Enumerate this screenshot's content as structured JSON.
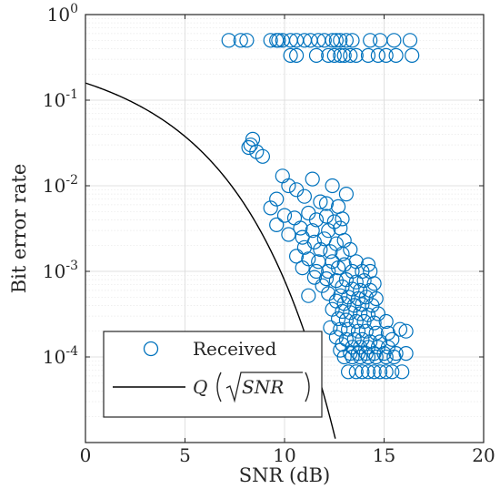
{
  "chart_data": {
    "type": "scatter",
    "xlabel": "SNR (dB)",
    "ylabel": "Bit error rate",
    "xlim": [
      0,
      20
    ],
    "ylim": [
      1e-05,
      1
    ],
    "yscale": "log",
    "grid": true,
    "minor_grid": true,
    "legend_position": "bottom-left",
    "x_ticks": [
      "0",
      "5",
      "10",
      "15",
      "20"
    ],
    "y_ticks": [
      {
        "base": "10",
        "exp": "-4",
        "value": 0.0001
      },
      {
        "base": "10",
        "exp": "-3",
        "value": 0.001
      },
      {
        "base": "10",
        "exp": "-2",
        "value": 0.01
      },
      {
        "base": "10",
        "exp": "-1",
        "value": 0.1
      },
      {
        "base": "10",
        "exp": "0",
        "value": 1
      }
    ],
    "colors": {
      "received": "#0072BD",
      "q_curve": "#000000",
      "grid": "#d9d9d9",
      "axis": "#262626"
    },
    "legend": {
      "received": "Received",
      "q_prefix": "Q",
      "q_arg": "SNR"
    },
    "series": [
      {
        "name": "Received",
        "marker": "circle-open",
        "points": [
          [
            7.2,
            0.5
          ],
          [
            7.8,
            0.5
          ],
          [
            9.3,
            0.5
          ],
          [
            9.6,
            0.5
          ],
          [
            9.9,
            0.5
          ],
          [
            10.3,
            0.5
          ],
          [
            10.6,
            0.5
          ],
          [
            11.0,
            0.5
          ],
          [
            11.3,
            0.5
          ],
          [
            11.7,
            0.5
          ],
          [
            12.0,
            0.5
          ],
          [
            12.4,
            0.5
          ],
          [
            12.8,
            0.5
          ],
          [
            13.1,
            0.5
          ],
          [
            13.4,
            0.5
          ],
          [
            14.3,
            0.5
          ],
          [
            14.8,
            0.5
          ],
          [
            15.5,
            0.5
          ],
          [
            16.3,
            0.5
          ],
          [
            8.1,
            0.5
          ],
          [
            9.7,
            0.5
          ],
          [
            12.6,
            0.5
          ],
          [
            10.3,
            0.333
          ],
          [
            10.6,
            0.333
          ],
          [
            11.6,
            0.333
          ],
          [
            12.2,
            0.333
          ],
          [
            12.8,
            0.333
          ],
          [
            13.3,
            0.333
          ],
          [
            13.6,
            0.333
          ],
          [
            14.2,
            0.333
          ],
          [
            14.7,
            0.333
          ],
          [
            15.1,
            0.333
          ],
          [
            15.6,
            0.333
          ],
          [
            16.4,
            0.333
          ],
          [
            12.5,
            0.333
          ],
          [
            13.0,
            0.333
          ],
          [
            8.2,
            0.028
          ],
          [
            8.4,
            0.035
          ],
          [
            8.6,
            0.025
          ],
          [
            8.9,
            0.022
          ],
          [
            8.3,
            0.03
          ],
          [
            9.9,
            0.013
          ],
          [
            11.4,
            0.012
          ],
          [
            10.2,
            0.01
          ],
          [
            12.4,
            0.01
          ],
          [
            13.1,
            0.008
          ],
          [
            9.6,
            0.007
          ],
          [
            10.6,
            0.009
          ],
          [
            11.0,
            0.0075
          ],
          [
            11.8,
            0.0065
          ],
          [
            9.3,
            0.0055
          ],
          [
            12.1,
            0.0062
          ],
          [
            12.7,
            0.0057
          ],
          [
            10.0,
            0.0045
          ],
          [
            10.5,
            0.0042
          ],
          [
            11.2,
            0.0048
          ],
          [
            11.6,
            0.004
          ],
          [
            12.1,
            0.0044
          ],
          [
            12.5,
            0.0038
          ],
          [
            12.9,
            0.0041
          ],
          [
            9.6,
            0.0035
          ],
          [
            10.8,
            0.0032
          ],
          [
            11.4,
            0.003
          ],
          [
            12.2,
            0.003
          ],
          [
            12.8,
            0.0032
          ],
          [
            10.2,
            0.0027
          ],
          [
            10.9,
            0.0025
          ],
          [
            11.5,
            0.0022
          ],
          [
            12.0,
            0.0024
          ],
          [
            12.6,
            0.0021
          ],
          [
            13.0,
            0.0023
          ],
          [
            11.0,
            0.0019
          ],
          [
            11.8,
            0.0018
          ],
          [
            12.3,
            0.0017
          ],
          [
            12.9,
            0.0016
          ],
          [
            13.3,
            0.0018
          ],
          [
            10.6,
            0.0015
          ],
          [
            11.2,
            0.0014
          ],
          [
            11.7,
            0.0013
          ],
          [
            12.4,
            0.0013
          ],
          [
            13.0,
            0.0012
          ],
          [
            13.6,
            0.0013
          ],
          [
            14.2,
            0.0012
          ],
          [
            10.9,
            0.0011
          ],
          [
            11.6,
            0.001
          ],
          [
            12.2,
            0.001
          ],
          [
            12.7,
            0.0011
          ],
          [
            13.4,
            0.001
          ],
          [
            13.9,
            0.001
          ],
          [
            14.3,
            0.001
          ],
          [
            11.5,
            0.00085
          ],
          [
            12.1,
            0.00082
          ],
          [
            12.6,
            0.00078
          ],
          [
            13.1,
            0.0008
          ],
          [
            13.6,
            0.00075
          ],
          [
            14.0,
            0.00078
          ],
          [
            14.5,
            0.00072
          ],
          [
            11.9,
            0.00068
          ],
          [
            12.9,
            0.00066
          ],
          [
            13.4,
            0.00062
          ],
          [
            13.8,
            0.0006
          ],
          [
            14.3,
            0.0006
          ],
          [
            12.2,
            0.00055
          ],
          [
            12.8,
            0.00052
          ],
          [
            13.2,
            0.0005
          ],
          [
            13.7,
            0.00048
          ],
          [
            14.1,
            0.0005
          ],
          [
            14.6,
            0.00048
          ],
          [
            11.2,
            0.00052
          ],
          [
            12.6,
            0.00045
          ],
          [
            13.0,
            0.00042
          ],
          [
            13.5,
            0.0004
          ],
          [
            13.9,
            0.00041
          ],
          [
            14.4,
            0.0004
          ],
          [
            12.4,
            0.00036
          ],
          [
            12.9,
            0.00034
          ],
          [
            13.3,
            0.00033
          ],
          [
            13.8,
            0.00032
          ],
          [
            14.2,
            0.00031
          ],
          [
            14.7,
            0.00032
          ],
          [
            12.7,
            0.00028
          ],
          [
            13.1,
            0.00027
          ],
          [
            13.6,
            0.00026
          ],
          [
            14.0,
            0.00026
          ],
          [
            14.5,
            0.00025
          ],
          [
            15.1,
            0.00026
          ],
          [
            12.3,
            0.00022
          ],
          [
            12.8,
            0.00021
          ],
          [
            13.2,
            0.00021
          ],
          [
            13.7,
            0.0002
          ],
          [
            14.1,
            0.0002
          ],
          [
            14.6,
            0.00019
          ],
          [
            15.2,
            0.00019
          ],
          [
            15.8,
            0.00021
          ],
          [
            16.1,
            0.0002
          ],
          [
            12.6,
            0.00017
          ],
          [
            13.1,
            0.00016
          ],
          [
            13.5,
            0.00016
          ],
          [
            13.9,
            0.00016
          ],
          [
            14.3,
            0.00015
          ],
          [
            14.8,
            0.00015
          ],
          [
            15.4,
            0.00016
          ],
          [
            12.9,
            0.00014
          ],
          [
            13.4,
            0.00013
          ],
          [
            13.8,
            0.00013
          ],
          [
            14.2,
            0.00013
          ],
          [
            14.7,
            0.00013
          ],
          [
            15.2,
            0.00013
          ],
          [
            12.8,
            0.00012
          ],
          [
            13.3,
            0.00011
          ],
          [
            13.7,
            0.00011
          ],
          [
            14.1,
            0.00011
          ],
          [
            14.5,
            0.00011
          ],
          [
            15.0,
            0.00011
          ],
          [
            15.6,
            0.00011
          ],
          [
            16.1,
            0.00011
          ],
          [
            13.0,
            0.0001
          ],
          [
            13.4,
            0.0001
          ],
          [
            13.8,
            0.0001
          ],
          [
            14.2,
            0.0001
          ],
          [
            14.6,
            0.0001
          ],
          [
            15.1,
            0.0001
          ],
          [
            15.5,
            0.0001
          ],
          [
            13.2,
            6.7e-05
          ],
          [
            13.6,
            6.7e-05
          ],
          [
            13.9,
            6.7e-05
          ],
          [
            14.2,
            6.7e-05
          ],
          [
            14.5,
            6.7e-05
          ],
          [
            14.8,
            6.7e-05
          ],
          [
            15.1,
            6.7e-05
          ],
          [
            15.4,
            6.7e-05
          ],
          [
            15.9,
            6.7e-05
          ]
        ]
      },
      {
        "name": "Q(√SNR)",
        "type": "line",
        "function": "Q(sqrt(SNR))"
      }
    ]
  }
}
